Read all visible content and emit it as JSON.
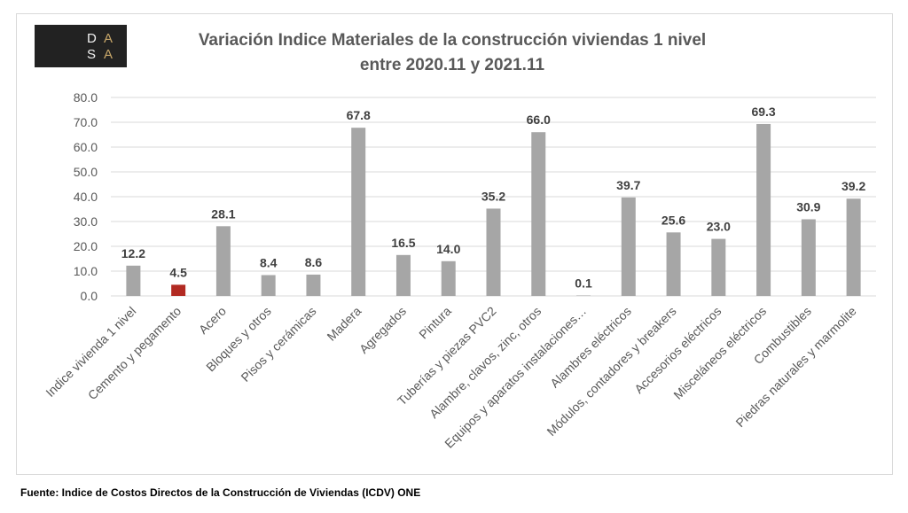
{
  "logo": {
    "letters": [
      "D",
      "A",
      "S",
      "A"
    ],
    "background": "#222222",
    "letter_color_light": "#f2f2f2",
    "accent_color": "#c9a86a"
  },
  "title": {
    "line1": "Variación Indice Materiales de la construcción viviendas 1 nivel",
    "line2": "entre 2020.11 y 2021.11"
  },
  "footer": "Fuente: Indice de Costos Directos de la Construcción de Viviendas (ICDV) ONE",
  "chart_data": {
    "type": "bar",
    "title": "Variación Indice Materiales de la construcción viviendas 1 nivel entre 2020.11 y 2021.11",
    "xlabel": "",
    "ylabel": "",
    "ylim": [
      0,
      80
    ],
    "yticks": [
      "0.0",
      "10.0",
      "20.0",
      "30.0",
      "40.0",
      "50.0",
      "60.0",
      "70.0",
      "80.0"
    ],
    "grid": true,
    "legend": "none",
    "categories": [
      "Indice vivienda 1 nivel",
      "Cemento y  pegamento",
      "Acero",
      "Bloques y otros",
      "Pisos y cerámicas",
      "Madera",
      "Agregados",
      "Pintura",
      "Tuberías y piezas PVC2",
      "Alambre, clavos, zinc, otros",
      "Equipos y aparatos instalaciones…",
      "Alambres eléctricos",
      "Módulos, contadores y breakers",
      "Accesorios eléctricos",
      "Misceláneos eléctricos",
      "Combustibles",
      "Piedras naturales y marmolite"
    ],
    "values": [
      12.2,
      4.5,
      28.1,
      8.4,
      8.6,
      67.8,
      16.5,
      14.0,
      35.2,
      66.0,
      0.1,
      39.7,
      25.6,
      23.0,
      69.3,
      30.9,
      39.2
    ],
    "value_labels": [
      "12.2",
      "4.5",
      "28.1",
      "8.4",
      "8.6",
      "67.8",
      "16.5",
      "14.0",
      "35.2",
      "66.0",
      "0.1",
      "39.7",
      "25.6",
      "23.0",
      "69.3",
      "30.9",
      "39.2"
    ],
    "colors": {
      "bar": "#a6a6a6",
      "highlight": "#b22a22",
      "grid": "#d9d9d9",
      "axis_text": "#595959",
      "label_text": "#404040"
    },
    "highlight_category": "Cemento y  pegamento"
  }
}
